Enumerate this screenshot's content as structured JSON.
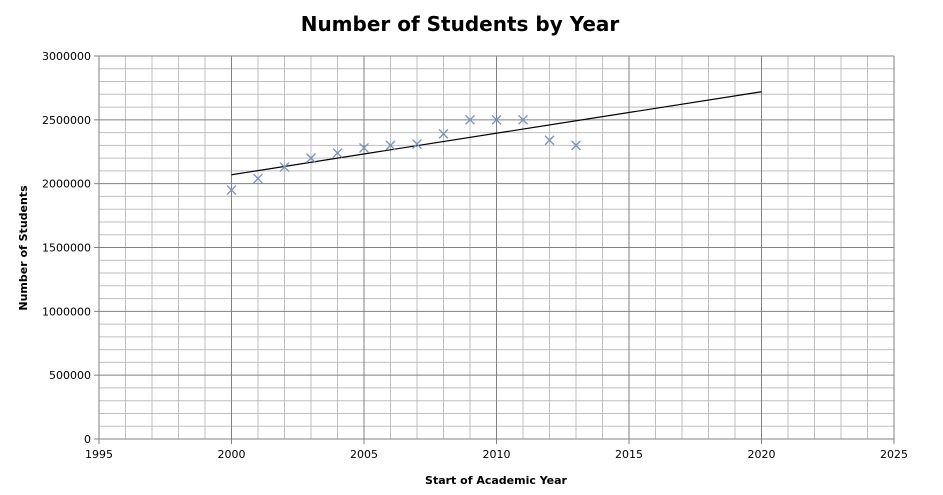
{
  "chart_data": {
    "type": "scatter",
    "title": "Number of Students by Year",
    "xlabel": "Start of Academic Year",
    "ylabel": "Number of Students",
    "xlim": [
      1995,
      2025
    ],
    "ylim": [
      0,
      3000000
    ],
    "x_ticks": [
      1995,
      2000,
      2005,
      2010,
      2015,
      2020,
      2025
    ],
    "y_ticks": [
      0,
      500000,
      1000000,
      1500000,
      2000000,
      2500000,
      3000000
    ],
    "x_tick_labels": [
      "1995",
      "2000",
      "2005",
      "2010",
      "2015",
      "2020",
      "2025"
    ],
    "y_tick_labels": [
      "0",
      "500000",
      "1000000",
      "1500000",
      "2000000",
      "2500000",
      "3000000"
    ],
    "grid": true,
    "legend": "none",
    "marker_color": "#7393c3",
    "trendline_color": "#000000",
    "series": [
      {
        "marker": "x",
        "x": [
          2000,
          2001,
          2002,
          2003,
          2004,
          2005,
          2006,
          2007,
          2008,
          2009,
          2010,
          2011,
          2012,
          2013
        ],
        "y": [
          1950000,
          2040000,
          2130000,
          2200000,
          2240000,
          2280000,
          2300000,
          2310000,
          2390000,
          2500000,
          2500000,
          2500000,
          2340000,
          2300000
        ]
      }
    ],
    "trendline": {
      "type": "linear",
      "x": [
        2000,
        2020
      ],
      "y": [
        2070000,
        2720000
      ]
    }
  }
}
